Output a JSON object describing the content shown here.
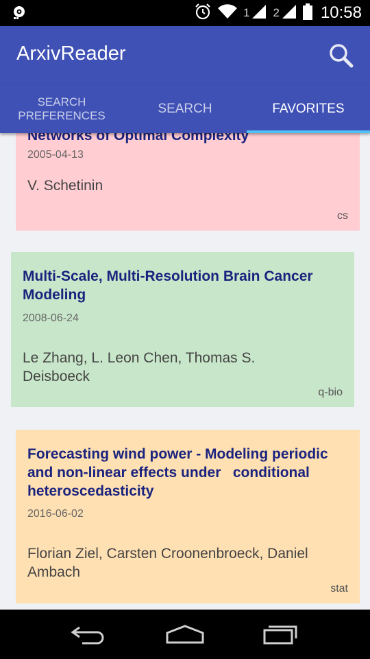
{
  "status_bar": {
    "sim1": "1",
    "sim2": "2",
    "time": "10:58"
  },
  "app_bar": {
    "title": "ArxivReader",
    "search_icon": "search-icon"
  },
  "tabs": [
    {
      "label_line1": "SEARCH",
      "label_line2": "PREFERENCES",
      "active": false
    },
    {
      "label": "SEARCH",
      "active": false
    },
    {
      "label": "FAVORITES",
      "active": true
    }
  ],
  "accent_color": "#3f51b5",
  "tab_indicator_color": "#4fc3f7",
  "favorites": [
    {
      "title": "Networks of Optimal Complexity",
      "date": "2005-04-13",
      "authors": "V. Schetinin",
      "category": "cs",
      "color": "#ffcdd2"
    },
    {
      "title_line1": "Multi-Scale, Multi-Resolution Brain Cancer",
      "title_line2": "Modeling",
      "date": "2008-06-24",
      "authors_line1": "Le Zhang, L. Leon Chen, Thomas S.",
      "authors_line2": "Deisboeck",
      "category": "q-bio",
      "color": "#c8e6c9"
    },
    {
      "title_line1": "Forecasting wind power - Modeling periodic",
      "title_line2": "and non-linear effects under   conditional",
      "title_line3": "heteroscedasticity",
      "date": "2016-06-02",
      "authors_line1": "Florian Ziel, Carsten Croonenbroeck, Daniel",
      "authors_line2": "Ambach",
      "category": "stat",
      "color": "#ffe0b2"
    }
  ]
}
